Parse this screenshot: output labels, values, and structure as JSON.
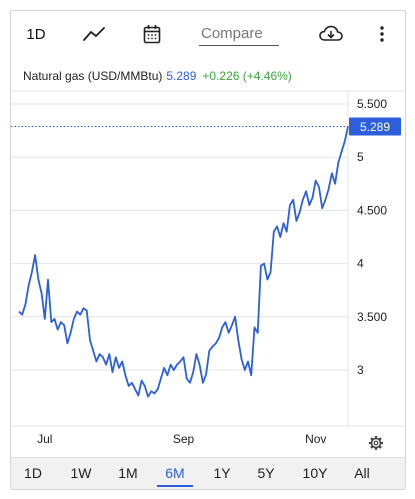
{
  "toolbar": {
    "interval_label": "1D",
    "compare_label": "Compare",
    "icons": [
      "line-chart-icon",
      "calendar-icon",
      "download-cloud-icon",
      "more-vertical-icon"
    ]
  },
  "legend": {
    "symbol": "Natural gas (USD/MMBtu)",
    "price": "5.289",
    "change": "+0.226 (+4.46%)"
  },
  "colors": {
    "line": "#2c5fd9",
    "positive": "#3aa53a",
    "grid": "#e4e4e4",
    "tab_bar_bg": "#f1f1f1"
  },
  "chart_data": {
    "type": "line",
    "ylim": [
      2.55,
      5.7
    ],
    "y_ticks": [
      "5.500",
      "5",
      "4.500",
      "4",
      "3.500",
      "3"
    ],
    "y_tick_values": [
      5.5,
      5.0,
      4.5,
      4.0,
      3.5,
      3.0
    ],
    "x_ticks": [
      "Jul",
      "Sep",
      "Nov"
    ],
    "x_tick_index": [
      8,
      51,
      92
    ],
    "current_value": 5.289,
    "current_label": "5.289",
    "values": [
      3.55,
      3.52,
      3.62,
      3.8,
      3.92,
      4.08,
      3.85,
      3.72,
      3.48,
      3.85,
      3.45,
      3.48,
      3.38,
      3.45,
      3.42,
      3.25,
      3.35,
      3.48,
      3.55,
      3.52,
      3.58,
      3.56,
      3.28,
      3.18,
      3.08,
      3.15,
      3.12,
      3.05,
      3.15,
      2.98,
      3.12,
      3.02,
      3.08,
      2.95,
      2.85,
      2.88,
      2.82,
      2.76,
      2.9,
      2.85,
      2.75,
      2.8,
      2.78,
      2.82,
      2.92,
      3.02,
      2.95,
      3.05,
      3.0,
      3.05,
      3.08,
      3.12,
      2.92,
      2.88,
      2.98,
      3.15,
      3.05,
      2.88,
      2.96,
      3.18,
      3.22,
      3.25,
      3.3,
      3.4,
      3.45,
      3.35,
      3.42,
      3.5,
      3.28,
      3.1,
      3.0,
      3.08,
      2.95,
      3.4,
      3.35,
      3.98,
      4.0,
      3.85,
      3.92,
      4.3,
      4.35,
      4.25,
      4.38,
      4.3,
      4.55,
      4.6,
      4.4,
      4.48,
      4.6,
      4.68,
      4.55,
      4.62,
      4.78,
      4.72,
      4.52,
      4.6,
      4.7,
      4.85,
      4.75,
      4.95,
      5.05,
      5.15,
      5.289
    ],
    "x_range_labels": [
      "1D",
      "1W",
      "1M",
      "6M",
      "1Y",
      "5Y",
      "10Y",
      "All"
    ],
    "active_range": "6M"
  },
  "tabs": [
    {
      "label": "1D"
    },
    {
      "label": "1W"
    },
    {
      "label": "1M"
    },
    {
      "label": "6M"
    },
    {
      "label": "1Y"
    },
    {
      "label": "5Y"
    },
    {
      "label": "10Y"
    },
    {
      "label": "All"
    }
  ],
  "active_tab": "6M",
  "settings_icon": "gear-icon"
}
